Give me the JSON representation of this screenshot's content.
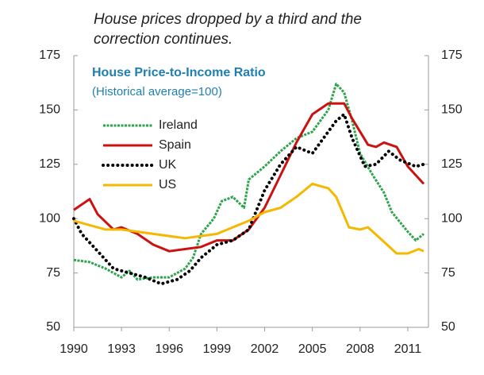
{
  "chart_data": {
    "type": "line",
    "annotation": [
      "House prices dropped by a third and the",
      "correction continues."
    ],
    "title": "House Price-to-Income Ratio",
    "subtitle": "(Historical average=100)",
    "xlim": [
      1990,
      2012.3
    ],
    "xticks": [
      1990,
      1993,
      1996,
      1999,
      2002,
      2005,
      2008,
      2011
    ],
    "ylim": [
      50,
      175
    ],
    "yticks": [
      50,
      75,
      100,
      125,
      150,
      175
    ],
    "y2lim": [
      50,
      175
    ],
    "y2ticks": [
      50,
      75,
      100,
      125,
      150,
      175
    ],
    "legend": "upper left",
    "grid": false,
    "series": [
      {
        "name": "Ireland",
        "color": "#2ca44a",
        "style": "dashed",
        "x": [
          1990,
          1991,
          1992,
          1993,
          1993.5,
          1994,
          1995,
          1996,
          1997,
          1997.5,
          1998,
          1998.8,
          1999.3,
          2000,
          2000.7,
          2001,
          2002,
          2003,
          2004,
          2005,
          2006,
          2006.5,
          2007,
          2007.5,
          2008,
          2008.8,
          2009.5,
          2010,
          2011,
          2011.5,
          2012
        ],
        "values": [
          81,
          80,
          77,
          73,
          76,
          72,
          73,
          73,
          77,
          82,
          93,
          100,
          108,
          110,
          105,
          118,
          124,
          131,
          137,
          140,
          150,
          162,
          158,
          145,
          130,
          120,
          112,
          103,
          94,
          90,
          93
        ]
      },
      {
        "name": "Spain",
        "color": "#cc1111",
        "style": "solid",
        "x": [
          1990,
          1991,
          1991.5,
          1992.5,
          1993,
          1994,
          1995,
          1996,
          1997,
          1998,
          1999,
          2000,
          2001,
          2002,
          2003,
          2004,
          2005,
          2006,
          2007,
          2007.5,
          2008.5,
          2009,
          2009.5,
          2010.3,
          2011,
          2011.5,
          2012
        ],
        "values": [
          104,
          109,
          102,
          95,
          96,
          93,
          88,
          85,
          86,
          87,
          90,
          90,
          95,
          105,
          120,
          135,
          148,
          153,
          153,
          146,
          134,
          133,
          135,
          133,
          124,
          120,
          116
        ]
      },
      {
        "name": "UK",
        "color": "#000000",
        "style": "dotted",
        "x": [
          1990,
          1990.5,
          1991.5,
          1992.5,
          1993.5,
          1994.5,
          1995.5,
          1996.5,
          1997.3,
          1998,
          1999,
          2000,
          2001,
          2002,
          2003,
          2004,
          2005,
          2005.5,
          2006.5,
          2007,
          2007.5,
          2008.3,
          2009,
          2009.8,
          2010.5,
          2011.5,
          2012
        ],
        "values": [
          100,
          93,
          85,
          77,
          75,
          73,
          70,
          72,
          76,
          82,
          88,
          90,
          95,
          113,
          125,
          133,
          130,
          135,
          145,
          148,
          137,
          124,
          125,
          131,
          127,
          124,
          125
        ]
      },
      {
        "name": "US",
        "color": "#f5b800",
        "style": "solid",
        "x": [
          1990,
          1991,
          1992,
          1993,
          1994,
          1995,
          1996,
          1997,
          1998,
          1999,
          2000,
          2001,
          2002,
          2003,
          2004,
          2005,
          2006,
          2006.5,
          2007.3,
          2008,
          2008.5,
          2009.7,
          2010.3,
          2011,
          2011.7,
          2012
        ],
        "values": [
          99,
          97,
          95,
          95,
          94,
          93,
          92,
          91,
          92,
          93,
          96,
          99,
          103,
          105,
          110,
          116,
          114,
          110,
          96,
          95,
          96,
          88,
          84,
          84,
          86,
          85
        ]
      }
    ]
  }
}
